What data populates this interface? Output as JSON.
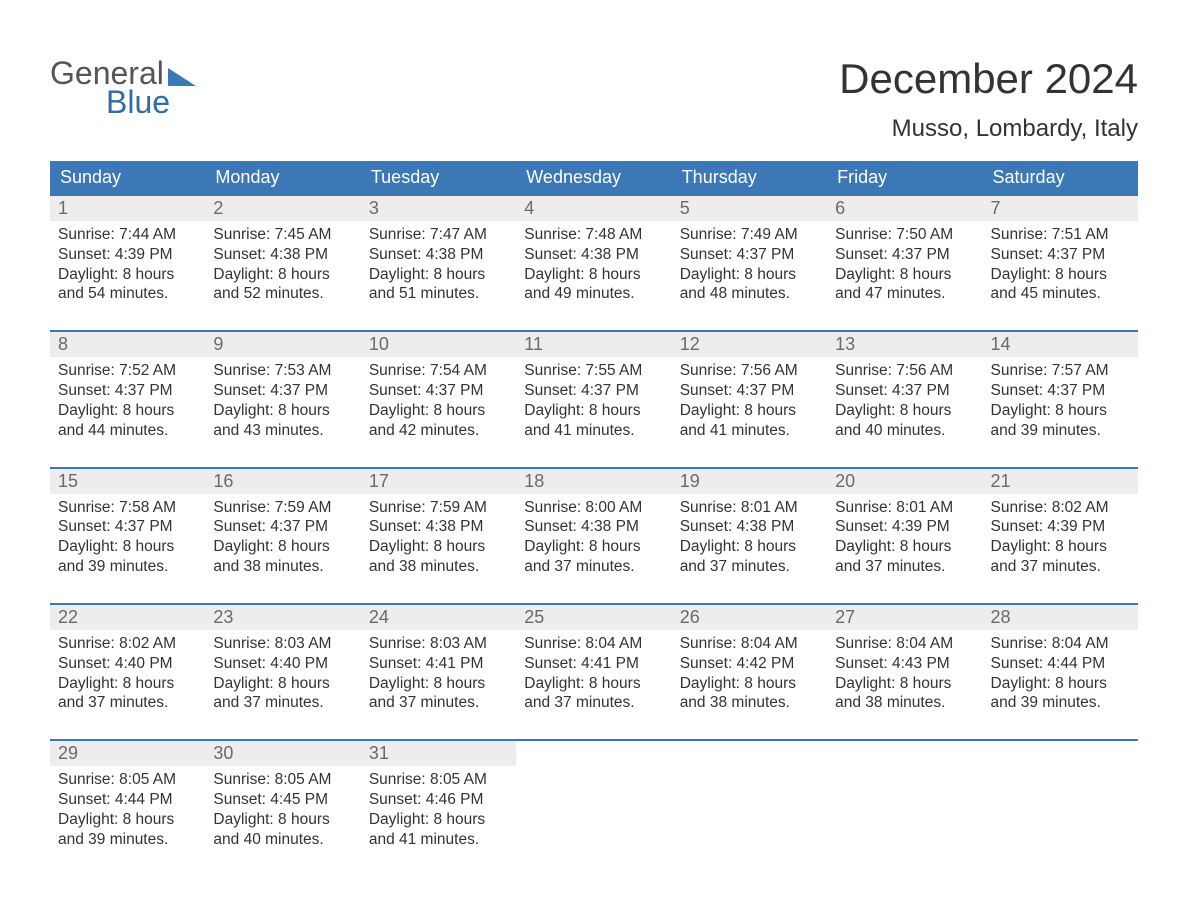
{
  "brand": {
    "word1": "General",
    "word2": "Blue",
    "accent_color": "#3b78b5"
  },
  "title": "December 2024",
  "location": "Musso, Lombardy, Italy",
  "colors": {
    "header_bg": "#3b78b5",
    "header_text": "#ffffff",
    "week_border": "#3b78b5",
    "daynum_bg": "#ededed",
    "daynum_text": "#6a6a6a",
    "body_text": "#333333",
    "page_bg": "#ffffff"
  },
  "typography": {
    "title_fontsize": 42,
    "location_fontsize": 24,
    "weekday_fontsize": 18,
    "daynum_fontsize": 18,
    "body_fontsize": 15.5
  },
  "weekdays": [
    "Sunday",
    "Monday",
    "Tuesday",
    "Wednesday",
    "Thursday",
    "Friday",
    "Saturday"
  ],
  "weeks": [
    [
      {
        "num": "1",
        "sunrise": "Sunrise: 7:44 AM",
        "sunset": "Sunset: 4:39 PM",
        "d1": "Daylight: 8 hours",
        "d2": "and 54 minutes."
      },
      {
        "num": "2",
        "sunrise": "Sunrise: 7:45 AM",
        "sunset": "Sunset: 4:38 PM",
        "d1": "Daylight: 8 hours",
        "d2": "and 52 minutes."
      },
      {
        "num": "3",
        "sunrise": "Sunrise: 7:47 AM",
        "sunset": "Sunset: 4:38 PM",
        "d1": "Daylight: 8 hours",
        "d2": "and 51 minutes."
      },
      {
        "num": "4",
        "sunrise": "Sunrise: 7:48 AM",
        "sunset": "Sunset: 4:38 PM",
        "d1": "Daylight: 8 hours",
        "d2": "and 49 minutes."
      },
      {
        "num": "5",
        "sunrise": "Sunrise: 7:49 AM",
        "sunset": "Sunset: 4:37 PM",
        "d1": "Daylight: 8 hours",
        "d2": "and 48 minutes."
      },
      {
        "num": "6",
        "sunrise": "Sunrise: 7:50 AM",
        "sunset": "Sunset: 4:37 PM",
        "d1": "Daylight: 8 hours",
        "d2": "and 47 minutes."
      },
      {
        "num": "7",
        "sunrise": "Sunrise: 7:51 AM",
        "sunset": "Sunset: 4:37 PM",
        "d1": "Daylight: 8 hours",
        "d2": "and 45 minutes."
      }
    ],
    [
      {
        "num": "8",
        "sunrise": "Sunrise: 7:52 AM",
        "sunset": "Sunset: 4:37 PM",
        "d1": "Daylight: 8 hours",
        "d2": "and 44 minutes."
      },
      {
        "num": "9",
        "sunrise": "Sunrise: 7:53 AM",
        "sunset": "Sunset: 4:37 PM",
        "d1": "Daylight: 8 hours",
        "d2": "and 43 minutes."
      },
      {
        "num": "10",
        "sunrise": "Sunrise: 7:54 AM",
        "sunset": "Sunset: 4:37 PM",
        "d1": "Daylight: 8 hours",
        "d2": "and 42 minutes."
      },
      {
        "num": "11",
        "sunrise": "Sunrise: 7:55 AM",
        "sunset": "Sunset: 4:37 PM",
        "d1": "Daylight: 8 hours",
        "d2": "and 41 minutes."
      },
      {
        "num": "12",
        "sunrise": "Sunrise: 7:56 AM",
        "sunset": "Sunset: 4:37 PM",
        "d1": "Daylight: 8 hours",
        "d2": "and 41 minutes."
      },
      {
        "num": "13",
        "sunrise": "Sunrise: 7:56 AM",
        "sunset": "Sunset: 4:37 PM",
        "d1": "Daylight: 8 hours",
        "d2": "and 40 minutes."
      },
      {
        "num": "14",
        "sunrise": "Sunrise: 7:57 AM",
        "sunset": "Sunset: 4:37 PM",
        "d1": "Daylight: 8 hours",
        "d2": "and 39 minutes."
      }
    ],
    [
      {
        "num": "15",
        "sunrise": "Sunrise: 7:58 AM",
        "sunset": "Sunset: 4:37 PM",
        "d1": "Daylight: 8 hours",
        "d2": "and 39 minutes."
      },
      {
        "num": "16",
        "sunrise": "Sunrise: 7:59 AM",
        "sunset": "Sunset: 4:37 PM",
        "d1": "Daylight: 8 hours",
        "d2": "and 38 minutes."
      },
      {
        "num": "17",
        "sunrise": "Sunrise: 7:59 AM",
        "sunset": "Sunset: 4:38 PM",
        "d1": "Daylight: 8 hours",
        "d2": "and 38 minutes."
      },
      {
        "num": "18",
        "sunrise": "Sunrise: 8:00 AM",
        "sunset": "Sunset: 4:38 PM",
        "d1": "Daylight: 8 hours",
        "d2": "and 37 minutes."
      },
      {
        "num": "19",
        "sunrise": "Sunrise: 8:01 AM",
        "sunset": "Sunset: 4:38 PM",
        "d1": "Daylight: 8 hours",
        "d2": "and 37 minutes."
      },
      {
        "num": "20",
        "sunrise": "Sunrise: 8:01 AM",
        "sunset": "Sunset: 4:39 PM",
        "d1": "Daylight: 8 hours",
        "d2": "and 37 minutes."
      },
      {
        "num": "21",
        "sunrise": "Sunrise: 8:02 AM",
        "sunset": "Sunset: 4:39 PM",
        "d1": "Daylight: 8 hours",
        "d2": "and 37 minutes."
      }
    ],
    [
      {
        "num": "22",
        "sunrise": "Sunrise: 8:02 AM",
        "sunset": "Sunset: 4:40 PM",
        "d1": "Daylight: 8 hours",
        "d2": "and 37 minutes."
      },
      {
        "num": "23",
        "sunrise": "Sunrise: 8:03 AM",
        "sunset": "Sunset: 4:40 PM",
        "d1": "Daylight: 8 hours",
        "d2": "and 37 minutes."
      },
      {
        "num": "24",
        "sunrise": "Sunrise: 8:03 AM",
        "sunset": "Sunset: 4:41 PM",
        "d1": "Daylight: 8 hours",
        "d2": "and 37 minutes."
      },
      {
        "num": "25",
        "sunrise": "Sunrise: 8:04 AM",
        "sunset": "Sunset: 4:41 PM",
        "d1": "Daylight: 8 hours",
        "d2": "and 37 minutes."
      },
      {
        "num": "26",
        "sunrise": "Sunrise: 8:04 AM",
        "sunset": "Sunset: 4:42 PM",
        "d1": "Daylight: 8 hours",
        "d2": "and 38 minutes."
      },
      {
        "num": "27",
        "sunrise": "Sunrise: 8:04 AM",
        "sunset": "Sunset: 4:43 PM",
        "d1": "Daylight: 8 hours",
        "d2": "and 38 minutes."
      },
      {
        "num": "28",
        "sunrise": "Sunrise: 8:04 AM",
        "sunset": "Sunset: 4:44 PM",
        "d1": "Daylight: 8 hours",
        "d2": "and 39 minutes."
      }
    ],
    [
      {
        "num": "29",
        "sunrise": "Sunrise: 8:05 AM",
        "sunset": "Sunset: 4:44 PM",
        "d1": "Daylight: 8 hours",
        "d2": "and 39 minutes."
      },
      {
        "num": "30",
        "sunrise": "Sunrise: 8:05 AM",
        "sunset": "Sunset: 4:45 PM",
        "d1": "Daylight: 8 hours",
        "d2": "and 40 minutes."
      },
      {
        "num": "31",
        "sunrise": "Sunrise: 8:05 AM",
        "sunset": "Sunset: 4:46 PM",
        "d1": "Daylight: 8 hours",
        "d2": "and 41 minutes."
      },
      null,
      null,
      null,
      null
    ]
  ]
}
